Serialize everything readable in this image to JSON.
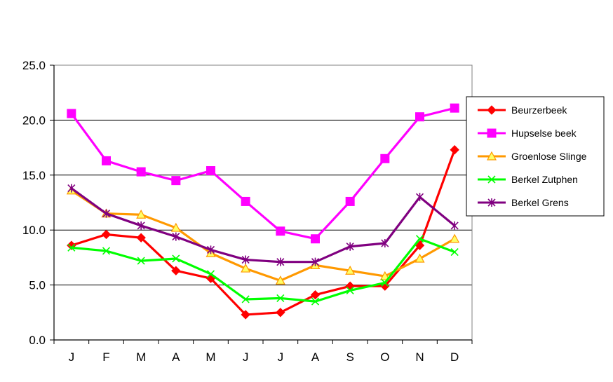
{
  "chart_data": {
    "type": "line",
    "categories": [
      "J",
      "F",
      "M",
      "A",
      "M",
      "J",
      "J",
      "A",
      "S",
      "O",
      "N",
      "D"
    ],
    "ylim": [
      0,
      25
    ],
    "yticks": [
      "0.0",
      "5.0",
      "10.0",
      "15.0",
      "20.0",
      "25.0"
    ],
    "grid": true,
    "legend_position": "right",
    "series": [
      {
        "name": "Beurzerbeek",
        "color": "#ff0000",
        "marker": "diamond",
        "values": [
          8.6,
          9.6,
          9.3,
          6.3,
          5.6,
          2.3,
          2.5,
          4.1,
          4.9,
          4.9,
          8.6,
          17.3
        ]
      },
      {
        "name": "Hupselse beek",
        "color": "#ff00ff",
        "marker": "square",
        "values": [
          20.6,
          16.3,
          15.3,
          14.5,
          15.4,
          12.6,
          9.9,
          9.2,
          12.6,
          16.5,
          20.3,
          21.1
        ]
      },
      {
        "name": "Groenlose Slinge",
        "color": "#ff9900",
        "marker": "triangle",
        "values": [
          13.6,
          11.5,
          11.4,
          10.2,
          7.9,
          6.5,
          5.4,
          6.8,
          6.3,
          5.8,
          7.4,
          9.2
        ]
      },
      {
        "name": "Berkel Zutphen",
        "color": "#00ff00",
        "marker": "x",
        "values": [
          8.4,
          8.1,
          7.2,
          7.4,
          6.0,
          3.7,
          3.8,
          3.5,
          4.5,
          5.2,
          9.2,
          8.0
        ]
      },
      {
        "name": "Berkel Grens",
        "color": "#800080",
        "marker": "star",
        "values": [
          13.8,
          11.5,
          10.4,
          9.4,
          8.2,
          7.3,
          7.1,
          7.1,
          8.5,
          8.8,
          13.0,
          10.4
        ]
      }
    ]
  }
}
